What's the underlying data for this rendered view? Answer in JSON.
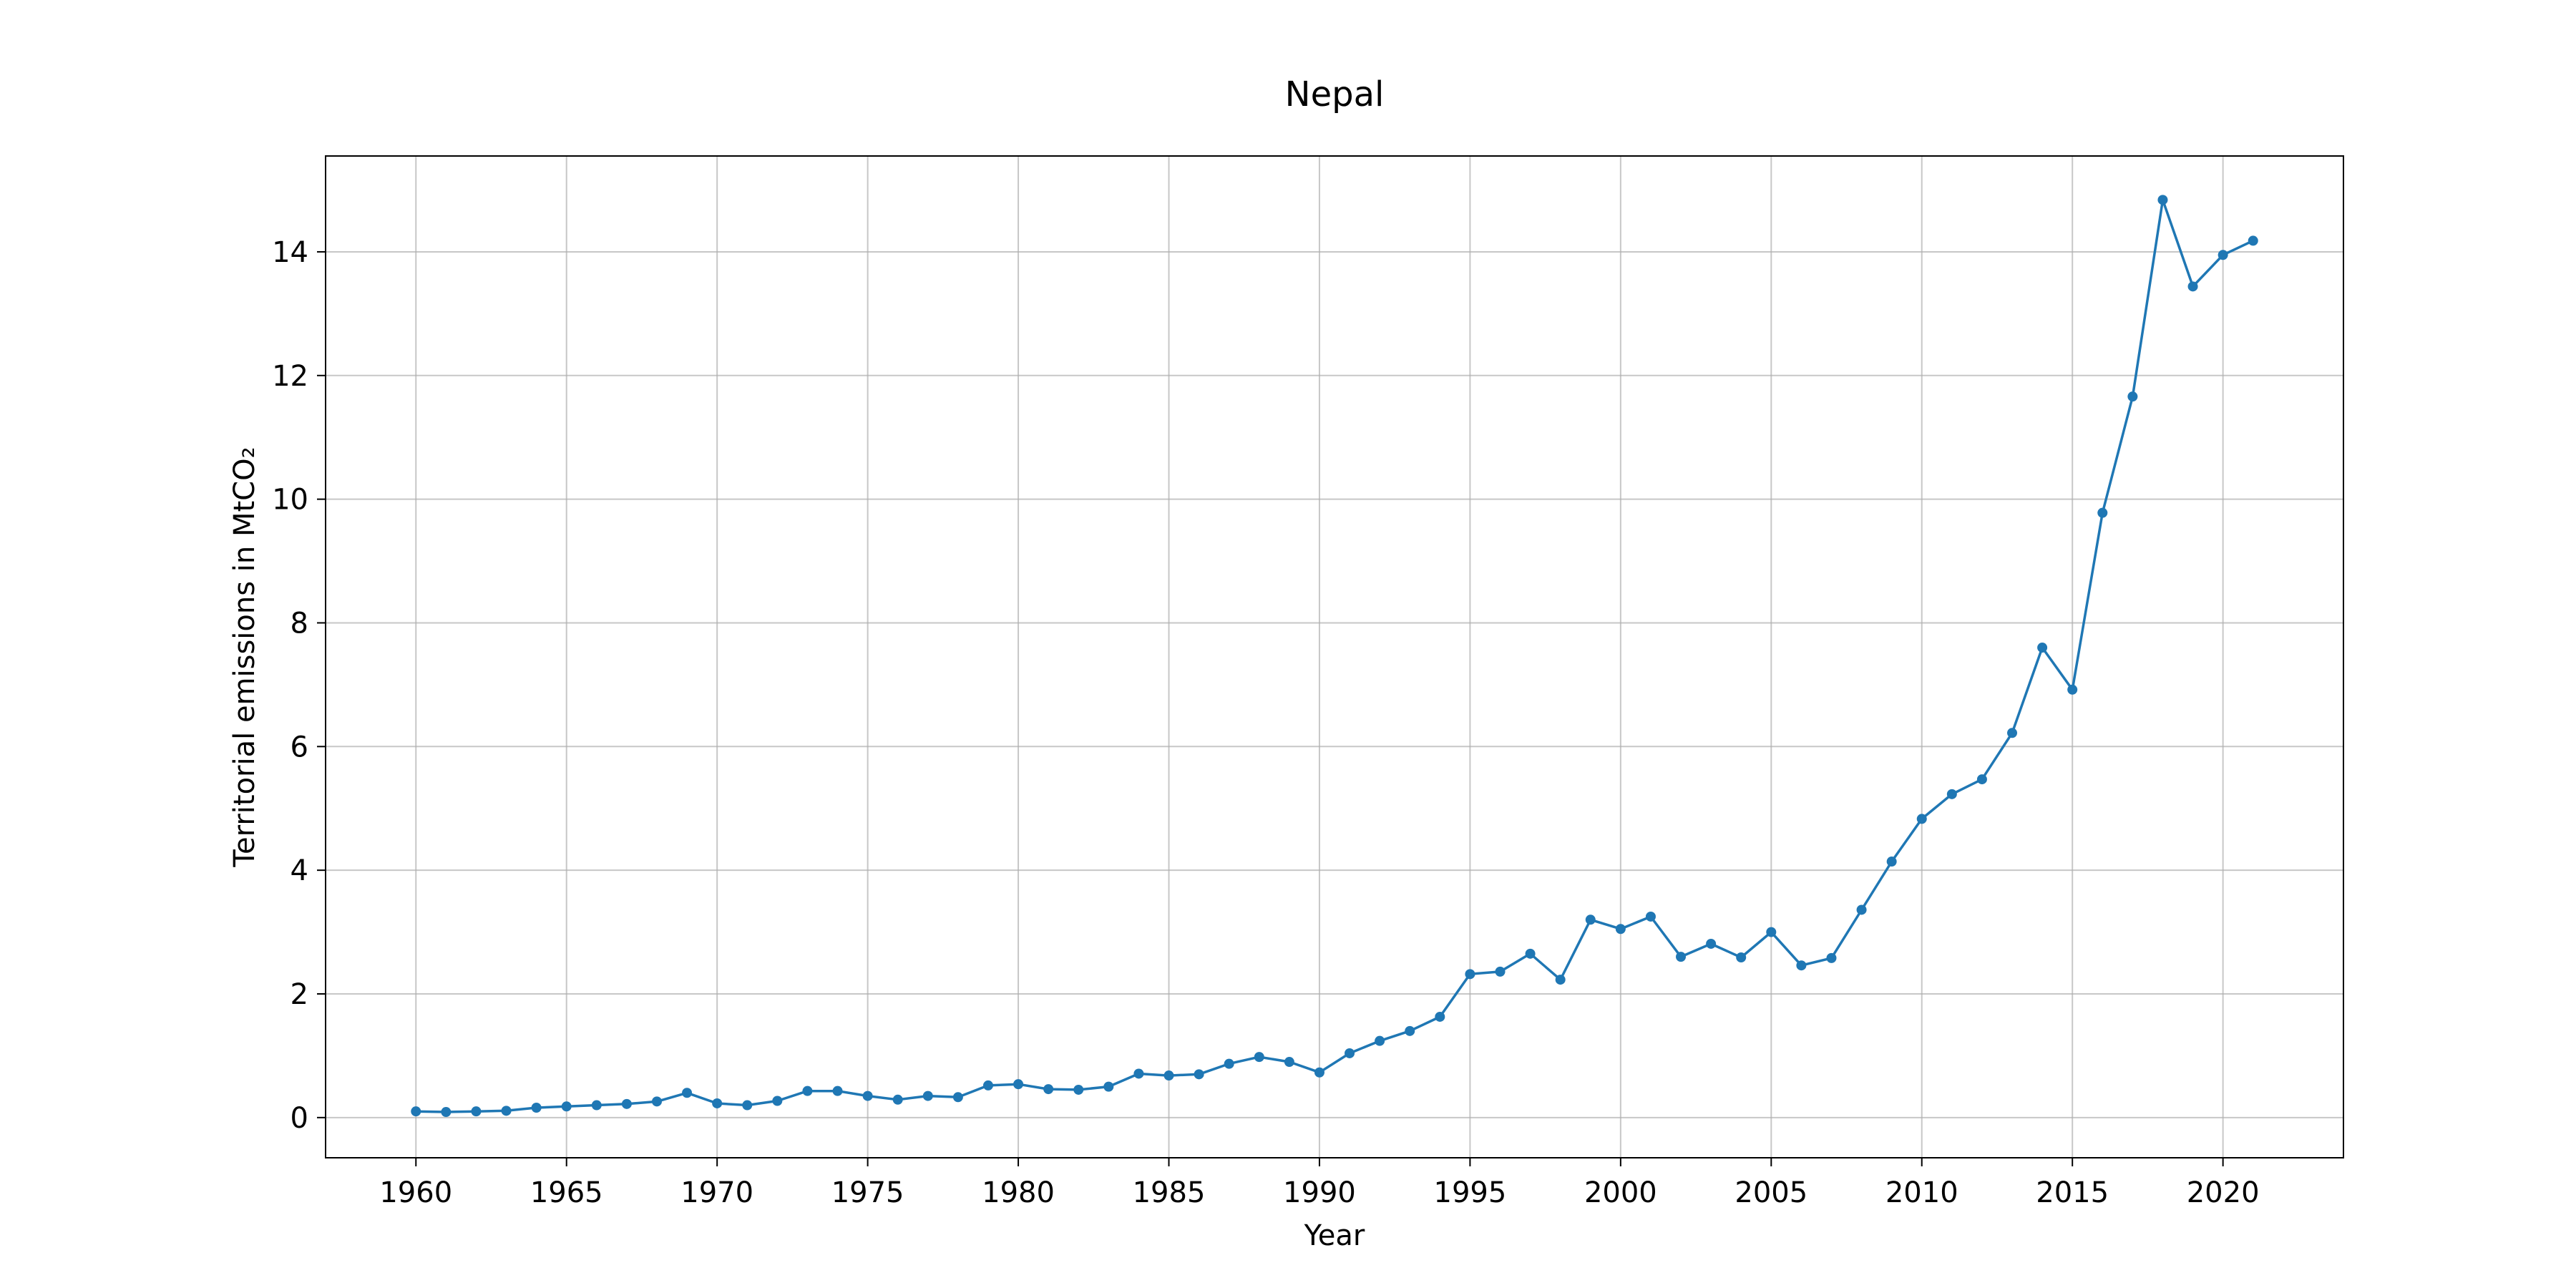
{
  "chart_data": {
    "type": "line",
    "title": "Nepal",
    "xlabel": "Year",
    "ylabel": "Territorial emissions in MtCO₂",
    "xlim": [
      1957,
      2024
    ],
    "ylim": [
      -0.65,
      15.55
    ],
    "xticks": [
      1960,
      1965,
      1970,
      1975,
      1980,
      1985,
      1990,
      1995,
      2000,
      2005,
      2010,
      2015,
      2020
    ],
    "yticks": [
      0,
      2,
      4,
      6,
      8,
      10,
      12,
      14
    ],
    "grid": true,
    "series": [
      {
        "color": "#1f77b4",
        "marker": "circle",
        "x": [
          1960,
          1961,
          1962,
          1963,
          1964,
          1965,
          1966,
          1967,
          1968,
          1969,
          1970,
          1971,
          1972,
          1973,
          1974,
          1975,
          1976,
          1977,
          1978,
          1979,
          1980,
          1981,
          1982,
          1983,
          1984,
          1985,
          1986,
          1987,
          1988,
          1989,
          1990,
          1991,
          1992,
          1993,
          1994,
          1995,
          1996,
          1997,
          1998,
          1999,
          2000,
          2001,
          2002,
          2003,
          2004,
          2005,
          2006,
          2007,
          2008,
          2009,
          2010,
          2011,
          2012,
          2013,
          2014,
          2015,
          2016,
          2017,
          2018,
          2019,
          2020,
          2021
        ],
        "y": [
          0.1,
          0.09,
          0.1,
          0.11,
          0.16,
          0.18,
          0.2,
          0.22,
          0.26,
          0.4,
          0.23,
          0.2,
          0.27,
          0.43,
          0.43,
          0.35,
          0.29,
          0.35,
          0.33,
          0.52,
          0.54,
          0.46,
          0.45,
          0.5,
          0.71,
          0.68,
          0.7,
          0.87,
          0.98,
          0.9,
          0.73,
          1.04,
          1.24,
          1.4,
          1.63,
          2.32,
          2.36,
          2.65,
          2.23,
          3.2,
          3.05,
          3.25,
          2.6,
          2.81,
          2.59,
          3.0,
          2.46,
          2.58,
          3.36,
          4.14,
          4.83,
          5.23,
          5.47,
          6.22,
          7.6,
          6.92,
          9.78,
          11.66,
          14.84,
          13.44,
          13.95,
          14.18
        ]
      }
    ]
  }
}
